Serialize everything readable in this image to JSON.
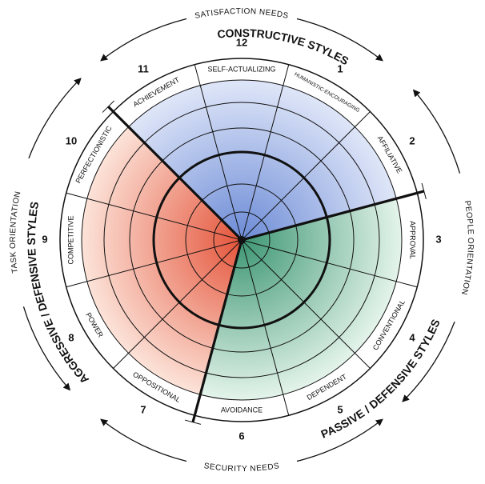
{
  "needs": {
    "top": "SATISFACTION NEEDS",
    "right": "PEOPLE ORIENTATION",
    "bottom": "SECURITY NEEDS",
    "left": "TASK ORIENTATION"
  },
  "clusters": [
    {
      "label": "CONSTRUCTIVE STYLES"
    },
    {
      "label": "PASSIVE / DEFENSIVE STYLES"
    },
    {
      "label": "AGGRESSIVE / DEFENSIVE STYLES"
    }
  ],
  "styles": [
    {
      "number": 1,
      "label": "HUMANISTIC-ENCOURAGING"
    },
    {
      "number": 2,
      "label": "AFFILIATIVE"
    },
    {
      "number": 3,
      "label": "APPROVAL"
    },
    {
      "number": 4,
      "label": "CONVENTIONAL"
    },
    {
      "number": 5,
      "label": "DEPENDENT"
    },
    {
      "number": 6,
      "label": "AVOIDANCE"
    },
    {
      "number": 7,
      "label": "OPPOSITIONAL"
    },
    {
      "number": 8,
      "label": "POWER"
    },
    {
      "number": 9,
      "label": "COMPETITIVE"
    },
    {
      "number": 10,
      "label": "PERFECTIONISTIC"
    },
    {
      "number": 11,
      "label": "ACHIEVEMENT"
    },
    {
      "number": 12,
      "label": "SELF-ACTUALIZING"
    }
  ]
}
